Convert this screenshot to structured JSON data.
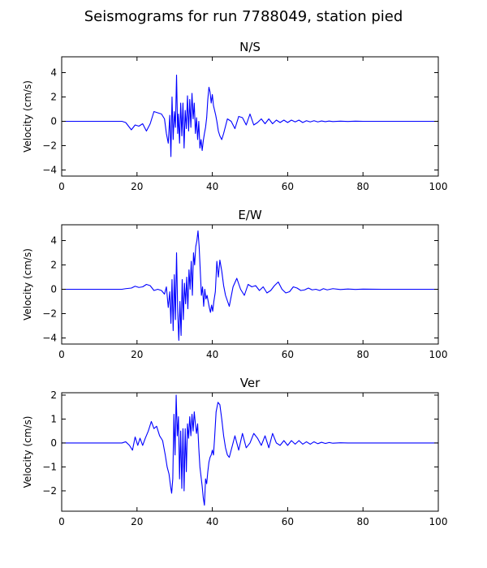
{
  "figure": {
    "suptitle": "Seismograms for run 7788049, station pied"
  },
  "colors": {
    "trace": "#0000ff",
    "axes": "#000000",
    "background": "#ffffff"
  },
  "chart_data": [
    {
      "type": "line",
      "title": "N/S",
      "ylabel": "Velocity (cm/s)",
      "xlabel": "",
      "xlim": [
        0,
        100
      ],
      "ylim": [
        -4.5,
        5.3
      ],
      "xticks": [
        "0",
        "20",
        "40",
        "60",
        "80",
        "100"
      ],
      "yticks": [
        "−4",
        "−2",
        "0",
        "2",
        "4"
      ],
      "ytick_values": [
        -4,
        -2,
        0,
        2,
        4
      ],
      "xtick_values": [
        0,
        20,
        40,
        60,
        80,
        100
      ],
      "grid": false,
      "series": [
        {
          "x": [
            0,
            16,
            17,
            18.5,
            19.5,
            20.5,
            21.5,
            22.5,
            23.5,
            24.5,
            25.5,
            26.5,
            27.3,
            27.8,
            28.3,
            28.7,
            29.0,
            29.3,
            29.6,
            29.9,
            30.2,
            30.5,
            30.8,
            31.0,
            31.3,
            31.6,
            31.9,
            32.2,
            32.5,
            32.8,
            33.1,
            33.4,
            33.7,
            34.0,
            34.3,
            34.6,
            34.9,
            35.2,
            35.5,
            35.8,
            36.1,
            36.4,
            36.7,
            37.0,
            37.3,
            37.6,
            37.9,
            38.2,
            38.5,
            38.8,
            39.1,
            39.4,
            39.7,
            40.0,
            40.3,
            40.6,
            40.9,
            41.2,
            41.6,
            42.0,
            42.5,
            43.0,
            44.0,
            45.0,
            46.0,
            47.0,
            48.0,
            49.0,
            50.0,
            51.0,
            52.0,
            53.0,
            54.0,
            55.0,
            56.0,
            57.0,
            58.0,
            59.0,
            60.0,
            61.0,
            62.0,
            63.0,
            64.0,
            65.0,
            66.0,
            67.0,
            68.0,
            69.0,
            70.0,
            71.0,
            72.0,
            74.0,
            76.0,
            78.0,
            80.0,
            85.0,
            90.0,
            100.0
          ],
          "y": [
            0,
            0,
            -0.1,
            -0.7,
            -0.3,
            -0.4,
            -0.2,
            -0.8,
            -0.2,
            0.8,
            0.7,
            0.6,
            0.2,
            -1.0,
            -1.8,
            0.5,
            -2.9,
            2.0,
            -1.5,
            0.8,
            -0.5,
            3.8,
            -1.0,
            0.6,
            -1.8,
            1.5,
            -1.2,
            1.5,
            -2.2,
            0.9,
            -0.6,
            2.1,
            -0.8,
            1.8,
            -0.5,
            2.3,
            0.2,
            1.5,
            -1.0,
            0.3,
            -1.5,
            0.0,
            -2.2,
            -1.5,
            -2.4,
            -1.6,
            -1.0,
            -0.5,
            0.3,
            1.8,
            2.8,
            2.4,
            1.5,
            2.2,
            1.3,
            0.9,
            0.5,
            0.0,
            -0.8,
            -1.2,
            -1.5,
            -1.0,
            0.2,
            0.0,
            -0.6,
            0.4,
            0.3,
            -0.3,
            0.6,
            -0.3,
            -0.1,
            0.2,
            -0.2,
            0.2,
            -0.2,
            0.1,
            -0.1,
            0.1,
            -0.1,
            0.1,
            -0.05,
            0.1,
            -0.1,
            0.05,
            -0.05,
            0.05,
            -0.05,
            0.03,
            -0.03,
            0.02,
            -0.02,
            0.01,
            -0.01,
            0.01,
            0,
            0,
            0,
            0
          ]
        }
      ]
    },
    {
      "type": "line",
      "title": "E/W",
      "ylabel": "Velocity (cm/s)",
      "xlabel": "",
      "xlim": [
        0,
        100
      ],
      "ylim": [
        -4.5,
        5.3
      ],
      "xticks": [
        "0",
        "20",
        "40",
        "60",
        "80",
        "100"
      ],
      "yticks": [
        "−4",
        "−2",
        "0",
        "2",
        "4"
      ],
      "ytick_values": [
        -4,
        -2,
        0,
        2,
        4
      ],
      "xtick_values": [
        0,
        20,
        40,
        60,
        80,
        100
      ],
      "grid": false,
      "series": [
        {
          "x": [
            0,
            16,
            17,
            18.5,
            19.5,
            20.5,
            21.5,
            22.5,
            23.5,
            24.5,
            25.5,
            26.5,
            27.3,
            27.8,
            28.3,
            28.7,
            29.0,
            29.3,
            29.6,
            29.9,
            30.2,
            30.5,
            30.8,
            31.1,
            31.4,
            31.7,
            32.0,
            32.3,
            32.6,
            32.9,
            33.2,
            33.5,
            33.8,
            34.1,
            34.4,
            34.7,
            35.0,
            35.3,
            35.6,
            35.9,
            36.2,
            36.5,
            36.8,
            37.1,
            37.4,
            37.7,
            38.0,
            38.3,
            38.6,
            38.9,
            39.2,
            39.5,
            39.8,
            40.1,
            40.4,
            40.8,
            41.2,
            41.6,
            42.0,
            42.5,
            43.0,
            43.5,
            44.5,
            45.5,
            46.5,
            47.5,
            48.5,
            49.5,
            50.5,
            51.5,
            52.5,
            53.5,
            54.5,
            55.5,
            56.5,
            57.5,
            58.5,
            59.5,
            60.5,
            61.5,
            62.5,
            63.5,
            64.5,
            65.5,
            66.5,
            67.5,
            68.5,
            69.5,
            70.5,
            72.0,
            74.0,
            76.0,
            78.0,
            80.0,
            85.0,
            90.0,
            100.0
          ],
          "y": [
            0,
            0,
            0.05,
            0.1,
            0.25,
            0.15,
            0.2,
            0.4,
            0.3,
            -0.1,
            0.0,
            -0.1,
            -0.4,
            0.2,
            -1.5,
            -0.2,
            -2.8,
            0.8,
            -3.4,
            1.2,
            -2.5,
            3.0,
            -1.8,
            -4.2,
            -1.0,
            -3.8,
            0.8,
            -2.5,
            0.5,
            -1.2,
            1.0,
            -1.6,
            1.6,
            0.0,
            2.3,
            -0.5,
            3.0,
            2.0,
            3.5,
            4.0,
            4.8,
            3.5,
            1.5,
            -0.5,
            0.2,
            -1.4,
            0.0,
            -0.8,
            -0.5,
            -1.0,
            -1.5,
            -1.9,
            -1.3,
            -1.8,
            -1.0,
            -0.2,
            2.3,
            1.0,
            2.4,
            1.5,
            0.3,
            -0.5,
            -1.4,
            0.2,
            0.9,
            0.0,
            -0.5,
            0.4,
            0.2,
            0.3,
            -0.1,
            0.2,
            -0.3,
            -0.1,
            0.3,
            0.6,
            0.0,
            -0.3,
            -0.2,
            0.2,
            0.1,
            -0.1,
            -0.05,
            0.1,
            -0.05,
            0.0,
            -0.1,
            0.05,
            -0.05,
            0.05,
            -0.02,
            0.02,
            -0.01,
            0.01,
            0,
            0,
            0
          ]
        }
      ]
    },
    {
      "type": "line",
      "title": "Ver",
      "ylabel": "Velocity (cm/s)",
      "xlabel": "",
      "xlim": [
        0,
        100
      ],
      "ylim": [
        -2.85,
        2.1
      ],
      "xticks": [
        "0",
        "20",
        "40",
        "60",
        "80",
        "100"
      ],
      "yticks": [
        "−2",
        "−1",
        "0",
        "1",
        "2"
      ],
      "ytick_values": [
        -2,
        -1,
        0,
        1,
        2
      ],
      "xtick_values": [
        0,
        20,
        40,
        60,
        80,
        100
      ],
      "grid": false,
      "series": [
        {
          "x": [
            0,
            16,
            17,
            18.0,
            18.8,
            19.5,
            20.2,
            20.8,
            21.5,
            22.2,
            23.0,
            23.8,
            24.5,
            25.2,
            26.0,
            26.8,
            27.5,
            28.0,
            28.5,
            28.9,
            29.2,
            29.5,
            29.8,
            30.1,
            30.4,
            30.7,
            31.0,
            31.3,
            31.6,
            31.9,
            32.2,
            32.5,
            32.8,
            33.1,
            33.4,
            33.7,
            34.0,
            34.3,
            34.6,
            34.9,
            35.2,
            35.5,
            35.8,
            36.1,
            36.4,
            36.7,
            37.0,
            37.3,
            37.6,
            37.9,
            38.2,
            38.5,
            38.8,
            39.1,
            39.4,
            39.7,
            40.0,
            40.3,
            40.6,
            41.0,
            41.5,
            42.0,
            42.5,
            43.0,
            43.5,
            44.0,
            44.5,
            45.0,
            46.0,
            47.0,
            48.0,
            49.0,
            50.0,
            51.0,
            52.0,
            53.0,
            54.0,
            55.0,
            56.0,
            57.0,
            58.0,
            59.0,
            60.0,
            61.0,
            62.0,
            63.0,
            64.0,
            65.0,
            66.0,
            67.0,
            68.0,
            69.0,
            70.0,
            71.0,
            72.0,
            74.0,
            76.0,
            80.0,
            90.0,
            100.0
          ],
          "y": [
            0,
            0,
            0.05,
            -0.1,
            -0.3,
            0.25,
            -0.1,
            0.2,
            -0.1,
            0.2,
            0.5,
            0.9,
            0.6,
            0.7,
            0.3,
            0.1,
            -0.5,
            -1.0,
            -1.3,
            -1.8,
            -2.1,
            -1.5,
            1.2,
            -0.5,
            2.0,
            0.3,
            1.1,
            -1.5,
            0.5,
            -1.9,
            0.6,
            -2.0,
            0.6,
            -1.2,
            0.8,
            0.2,
            1.1,
            0.3,
            1.2,
            0.5,
            1.3,
            0.8,
            0.4,
            0.8,
            -0.2,
            -1.0,
            -1.4,
            -1.8,
            -2.3,
            -2.6,
            -1.5,
            -1.7,
            -1.2,
            -0.8,
            -0.6,
            -0.5,
            -0.3,
            -0.5,
            0.2,
            1.3,
            1.7,
            1.6,
            1.0,
            0.3,
            -0.2,
            -0.5,
            -0.6,
            -0.3,
            0.3,
            -0.3,
            0.4,
            -0.2,
            0.0,
            0.4,
            0.2,
            -0.1,
            0.3,
            -0.2,
            0.4,
            0.0,
            -0.1,
            0.1,
            -0.1,
            0.1,
            -0.05,
            0.1,
            -0.05,
            0.05,
            -0.05,
            0.05,
            -0.03,
            0.03,
            -0.02,
            0.02,
            -0.01,
            0.01,
            0,
            0,
            0,
            0
          ]
        }
      ]
    }
  ]
}
